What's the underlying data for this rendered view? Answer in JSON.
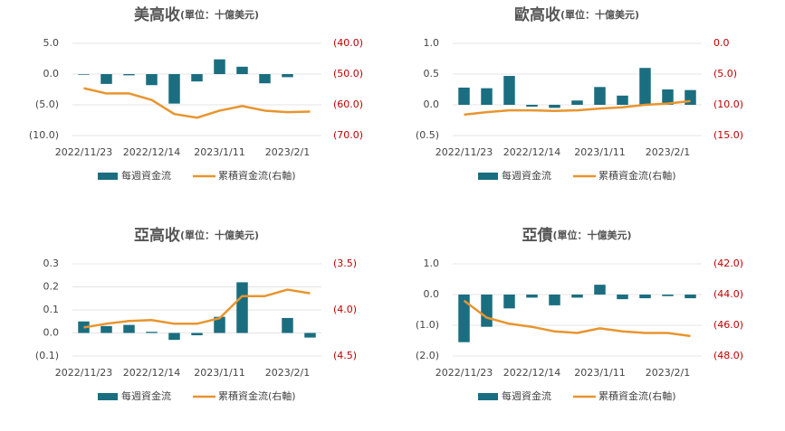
{
  "chart_data": [
    {
      "type": "bar_line",
      "title": "美高收",
      "subtitle": "(單位：十億美元)",
      "categories": [
        "2022/11/23",
        null,
        null,
        "2022/12/14",
        null,
        null,
        "2023/1/11",
        null,
        null,
        "2023/2/1",
        null
      ],
      "series": [
        {
          "name": "每週資金流",
          "color": "#1a6e80",
          "values": [
            -0.1,
            -1.6,
            -0.2,
            -1.8,
            -4.8,
            -1.2,
            2.4,
            1.2,
            -1.5,
            -0.5,
            0
          ]
        },
        {
          "name": "累積資金流(右軸)",
          "color": "#e8952e",
          "axis": "y2",
          "values": [
            -54.6,
            -56.3,
            -56.3,
            -58.4,
            -63,
            -64.2,
            -61.9,
            -60.4,
            -61.9,
            -62.4,
            -62.2
          ]
        }
      ],
      "ylim": [
        -10,
        5
      ],
      "yticks": [
        {
          "value": 5,
          "label": "5.0"
        },
        {
          "value": 0,
          "label": "0.0"
        },
        {
          "value": -5,
          "label": "(5.0)"
        },
        {
          "value": -10,
          "label": "(10.0)"
        }
      ],
      "y2lim": [
        -70,
        -40
      ],
      "y2ticks": [
        {
          "value": -40,
          "label": "(40.0)"
        },
        {
          "value": -50,
          "label": "(50.0)"
        },
        {
          "value": -60,
          "label": "(60.0)"
        },
        {
          "value": -70,
          "label": "(70.0)"
        }
      ],
      "grid": true
    },
    {
      "type": "bar_line",
      "title": "歐高收",
      "subtitle": "(單位：十億美元)",
      "categories": [
        "2022/11/23",
        null,
        null,
        "2022/12/14",
        null,
        null,
        "2023/1/11",
        null,
        null,
        "2023/2/1",
        null
      ],
      "series": [
        {
          "name": "每週資金流",
          "color": "#1a6e80",
          "values": [
            0.28,
            0.27,
            0.47,
            -0.03,
            -0.05,
            0.07,
            0.29,
            0.15,
            0.6,
            0.25,
            0.24
          ]
        },
        {
          "name": "累積資金流(右軸)",
          "color": "#e8952e",
          "axis": "y2",
          "values": [
            -11.6,
            -11.2,
            -10.9,
            -10.9,
            -11,
            -10.9,
            -10.6,
            -10.4,
            -10,
            -9.8,
            -9.4
          ]
        }
      ],
      "ylim": [
        -0.5,
        1
      ],
      "yticks": [
        {
          "value": 1,
          "label": "1.0"
        },
        0.5,
        {
          "value": 0,
          "label": "0.0"
        },
        {
          "value": -0.5,
          "label": "(0.5)"
        }
      ],
      "y2lim": [
        -15,
        0
      ],
      "y2ticks": [
        {
          "value": 0,
          "label": "0.0"
        },
        {
          "value": -5,
          "label": "(5.0)"
        },
        {
          "value": -10,
          "label": "(10.0)"
        },
        {
          "value": -15,
          "label": "(15.0)"
        }
      ],
      "grid": true
    },
    {
      "type": "bar_line",
      "title": "亞高收",
      "subtitle": "(單位：十億美元)",
      "categories": [
        "2022/11/23",
        null,
        null,
        "2022/12/14",
        null,
        null,
        "2023/1/11",
        null,
        null,
        "2023/2/1",
        null
      ],
      "series": [
        {
          "name": "每週資金流",
          "color": "#1a6e80",
          "values": [
            0.05,
            0.03,
            0.035,
            0.005,
            -0.03,
            -0.01,
            0.07,
            0.22,
            0,
            0.065,
            -0.02
          ]
        },
        {
          "name": "累積資金流(右軸)",
          "color": "#e8952e",
          "axis": "y2",
          "values": [
            -4.19,
            -4.15,
            -4.12,
            -4.11,
            -4.15,
            -4.15,
            -4.09,
            -3.85,
            -3.85,
            -3.78,
            -3.82
          ]
        }
      ],
      "ylim": [
        -0.1,
        0.3
      ],
      "yticks": [
        0.3,
        0.2,
        0.1,
        {
          "value": 0,
          "label": "0.0"
        },
        {
          "value": -0.1,
          "label": "(0.1)"
        }
      ],
      "y2lim": [
        -4.5,
        -3.5
      ],
      "y2ticks": [
        {
          "value": -3.5,
          "label": "(3.5)"
        },
        {
          "value": -4,
          "label": "(4.0)"
        },
        {
          "value": -4.5,
          "label": "(4.5)"
        }
      ],
      "grid": true
    },
    {
      "type": "bar_line",
      "title": "亞債",
      "subtitle": "(單位：十億美元)",
      "categories": [
        "2022/11/23",
        null,
        null,
        "2022/12/14",
        null,
        null,
        "2023/1/11",
        null,
        null,
        "2023/2/1",
        null
      ],
      "series": [
        {
          "name": "每週資金流",
          "color": "#1a6e80",
          "values": [
            -1.55,
            -1.05,
            -0.45,
            -0.1,
            -0.35,
            -0.1,
            0.32,
            -0.15,
            -0.12,
            -0.05,
            -0.12
          ]
        },
        {
          "name": "累積資金流(右軸)",
          "color": "#e8952e",
          "axis": "y2",
          "values": [
            -44.4,
            -45.5,
            -45.9,
            -46.1,
            -46.4,
            -46.5,
            -46.2,
            -46.4,
            -46.5,
            -46.5,
            -46.7
          ]
        }
      ],
      "ylim": [
        -2,
        1
      ],
      "yticks": [
        {
          "value": 1,
          "label": "1.0"
        },
        {
          "value": 0,
          "label": "0.0"
        },
        {
          "value": -1,
          "label": "(1.0)"
        },
        {
          "value": -2,
          "label": "(2.0)"
        }
      ],
      "y2lim": [
        -48,
        -42
      ],
      "y2ticks": [
        {
          "value": -42,
          "label": "(42.0)"
        },
        {
          "value": -44,
          "label": "(44.0)"
        },
        {
          "value": -46,
          "label": "(46.0)"
        },
        {
          "value": -48,
          "label": "(48.0)"
        }
      ],
      "grid": true
    }
  ]
}
